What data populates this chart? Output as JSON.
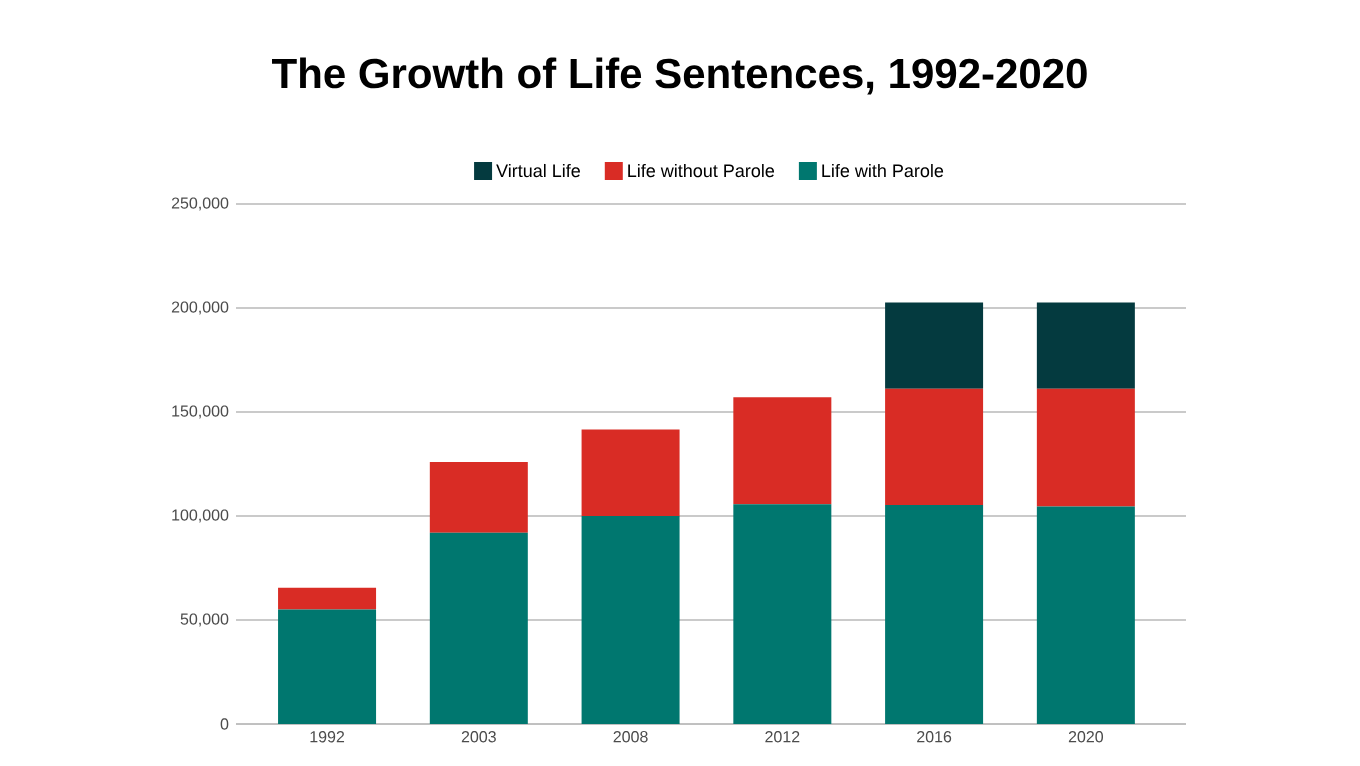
{
  "chart_data": {
    "type": "bar",
    "title": "The Growth of Life Sentences, 1992-2020",
    "categories": [
      "1992",
      "2003",
      "2008",
      "2012",
      "2016",
      "2020"
    ],
    "series": [
      {
        "name": "Life with Parole",
        "color": "#00776f",
        "values": [
          55000,
          92000,
          100000,
          105600,
          105300,
          104600
        ]
      },
      {
        "name": "Life without Parole",
        "color": "#d92c25",
        "values": [
          10500,
          34000,
          41600,
          51500,
          55900,
          56600
        ]
      },
      {
        "name": "Virtual Life",
        "color": "#043a3f",
        "values": [
          null,
          null,
          null,
          null,
          41500,
          41500
        ]
      }
    ],
    "stacked": true,
    "ylim": [
      0,
      250000
    ],
    "yticks": [
      {
        "value": 0,
        "label": "0"
      },
      {
        "value": 50000,
        "label": "50,000"
      },
      {
        "value": 100000,
        "label": "100,000"
      },
      {
        "value": 150000,
        "label": "150,000"
      },
      {
        "value": 200000,
        "label": "200,000"
      },
      {
        "value": 250000,
        "label": "250,000"
      }
    ],
    "grid": "y",
    "legend": "top"
  }
}
